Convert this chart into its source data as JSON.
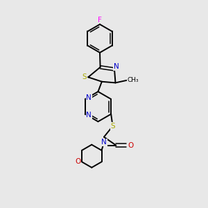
{
  "bg_color": "#e8e8e8",
  "bond_color": "#000000",
  "figsize": [
    3.0,
    3.0
  ],
  "dpi": 100,
  "colors": {
    "F": "#ff00ff",
    "S": "#aaaa00",
    "N": "#0000cc",
    "O": "#cc0000",
    "C": "#000000"
  }
}
